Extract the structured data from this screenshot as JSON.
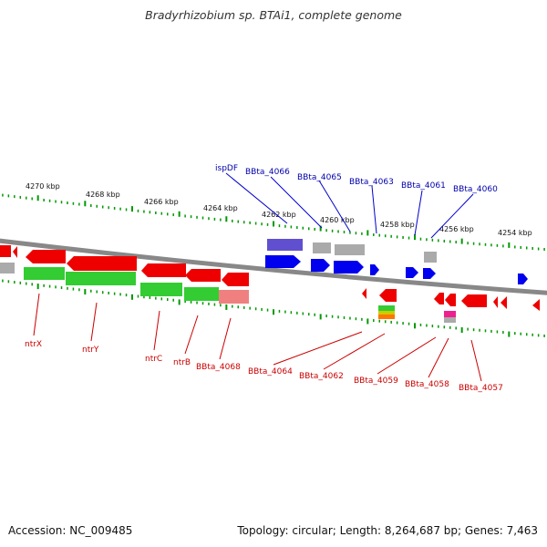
{
  "title": "Bradyrhizobium sp. BTAi1, complete genome",
  "footer": {
    "accession": "Accession: NC_009485",
    "topology": "Topology: circular; Length: 8,264,687 bp; Genes: 7,463"
  },
  "scale_labels": [
    "4270 kbp",
    "4268 kbp",
    "4266 kbp",
    "4264 kbp",
    "4262 kbp",
    "4260 kbp",
    "4258 kbp",
    "4256 kbp",
    "4254 kbp"
  ],
  "top_gene_labels": [
    "ispDF",
    "BBta_4066",
    "BBta_4065",
    "BBta_4063",
    "BBta_4061",
    "BBta_4060"
  ],
  "bottom_gene_labels": [
    "ntrX",
    "ntrY",
    "ntrC",
    "ntrB",
    "BBta_4068",
    "BBta_4064",
    "BBta_4062",
    "BBta_4059",
    "BBta_4058",
    "BBta_4057"
  ],
  "colors": {
    "label_top": "#0000aa",
    "label_bottom": "#cc0000",
    "gene_forward": "#0000ee",
    "gene_reverse": "#ee0000",
    "rna": "#5f4fd0",
    "pseudo": "#aaaaaa",
    "cog_green": "#33cc33",
    "cog_pink": "#f08080",
    "tick": "#009900",
    "backbone": "#888888"
  },
  "icons": [
    "gene-arrow-forward-icon",
    "gene-arrow-reverse-icon"
  ]
}
